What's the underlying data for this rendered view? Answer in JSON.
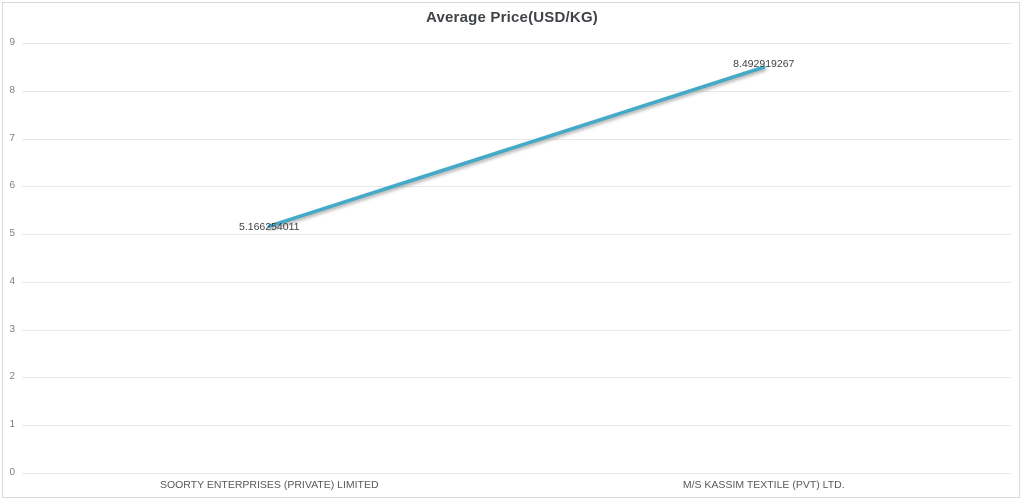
{
  "chart_data": {
    "type": "line",
    "title": "Average Price(USD/KG)",
    "categories": [
      "SOORTY ENTERPRISES (PRIVATE) LIMITED",
      "M/S KASSIM TEXTILE (PVT) LTD."
    ],
    "values": [
      5.166254011,
      8.492919267
    ],
    "data_labels": [
      "5.166254011",
      "8.492919267"
    ],
    "xlabel": "",
    "ylabel": "",
    "ylim": [
      0,
      9
    ],
    "ytick_interval": 1,
    "grid": true,
    "legend": false,
    "line_color": "#45A9C8"
  },
  "styles": {
    "grid_color": "#E8E8E8",
    "border_color": "#D9D9D9",
    "ytick_color": "#7F7F7F",
    "category_label_color": "#595959",
    "data_label_color": "#3F3F3F",
    "title_color": "#404347"
  }
}
